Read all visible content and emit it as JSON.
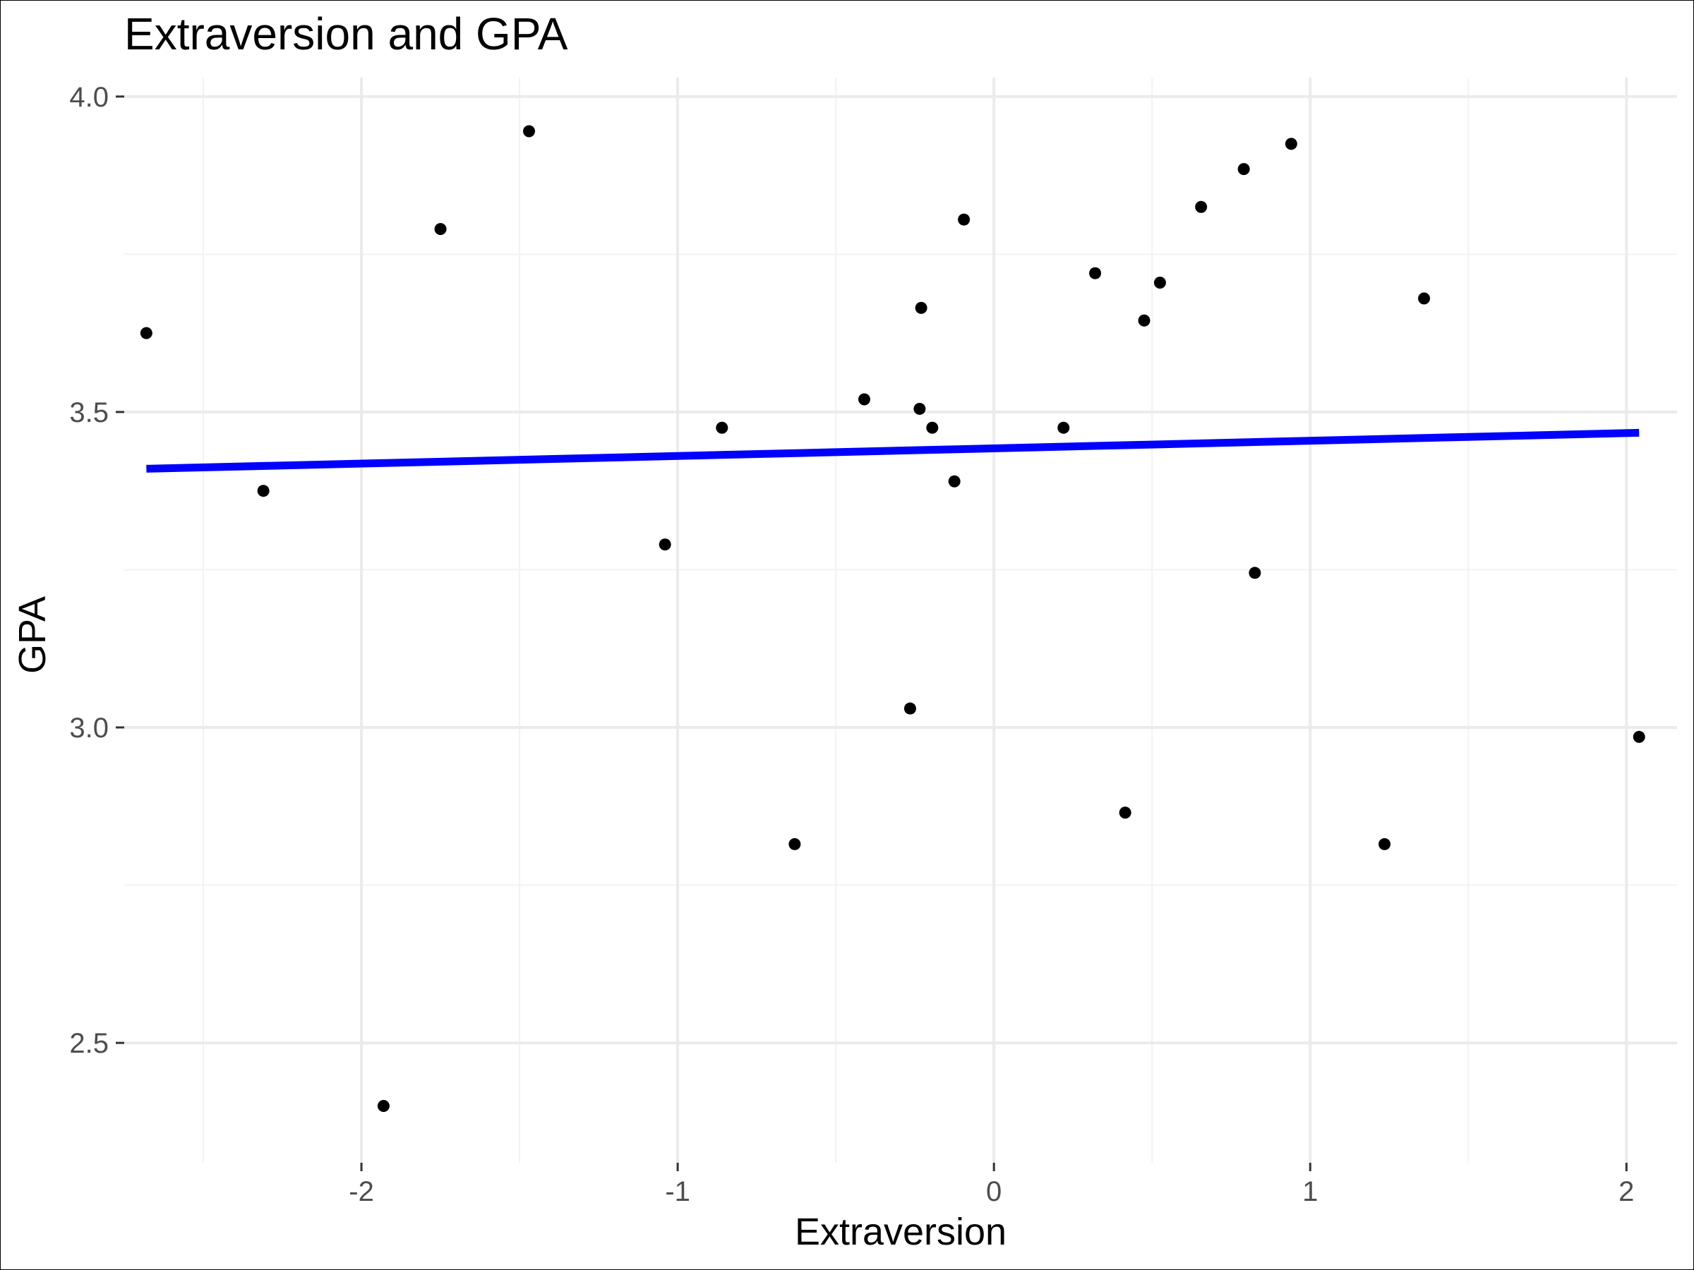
{
  "chart_data": {
    "type": "scatter",
    "title": "Extraversion and GPA",
    "xlabel": "Extraversion",
    "ylabel": "GPA",
    "xlim": [
      -2.75,
      2.16
    ],
    "ylim": [
      2.31,
      4.03
    ],
    "x_ticks": [
      -2,
      -1,
      0,
      1,
      2
    ],
    "x_tick_labels": [
      "-2",
      "-1",
      "0",
      "1",
      "2"
    ],
    "y_ticks": [
      2.5,
      3.0,
      3.5,
      4.0
    ],
    "y_tick_labels": [
      "2.5",
      "3.0",
      "3.5",
      "4.0"
    ],
    "grid": true,
    "colors": {
      "points": "#000000",
      "fit_line": "#0000ff"
    },
    "points": [
      {
        "x": -2.68,
        "y": 3.625
      },
      {
        "x": -2.31,
        "y": 3.375
      },
      {
        "x": -1.93,
        "y": 2.4
      },
      {
        "x": -1.75,
        "y": 3.79
      },
      {
        "x": -1.47,
        "y": 3.945
      },
      {
        "x": -1.04,
        "y": 3.29
      },
      {
        "x": -0.86,
        "y": 3.475
      },
      {
        "x": -0.63,
        "y": 2.815
      },
      {
        "x": -0.41,
        "y": 3.52
      },
      {
        "x": -0.265,
        "y": 3.03
      },
      {
        "x": -0.235,
        "y": 3.505
      },
      {
        "x": -0.23,
        "y": 3.665
      },
      {
        "x": -0.195,
        "y": 3.475
      },
      {
        "x": -0.125,
        "y": 3.39
      },
      {
        "x": -0.095,
        "y": 3.805
      },
      {
        "x": 0.22,
        "y": 3.475
      },
      {
        "x": 0.32,
        "y": 3.72
      },
      {
        "x": 0.415,
        "y": 2.865
      },
      {
        "x": 0.475,
        "y": 3.645
      },
      {
        "x": 0.525,
        "y": 3.705
      },
      {
        "x": 0.655,
        "y": 3.825
      },
      {
        "x": 0.79,
        "y": 3.885
      },
      {
        "x": 0.825,
        "y": 3.245
      },
      {
        "x": 0.94,
        "y": 3.925
      },
      {
        "x": 1.235,
        "y": 2.815
      },
      {
        "x": 1.36,
        "y": 3.68
      },
      {
        "x": 2.04,
        "y": 2.985
      }
    ],
    "fit_line": {
      "x": [
        -2.68,
        2.04
      ],
      "y": [
        3.41,
        3.467
      ]
    }
  }
}
